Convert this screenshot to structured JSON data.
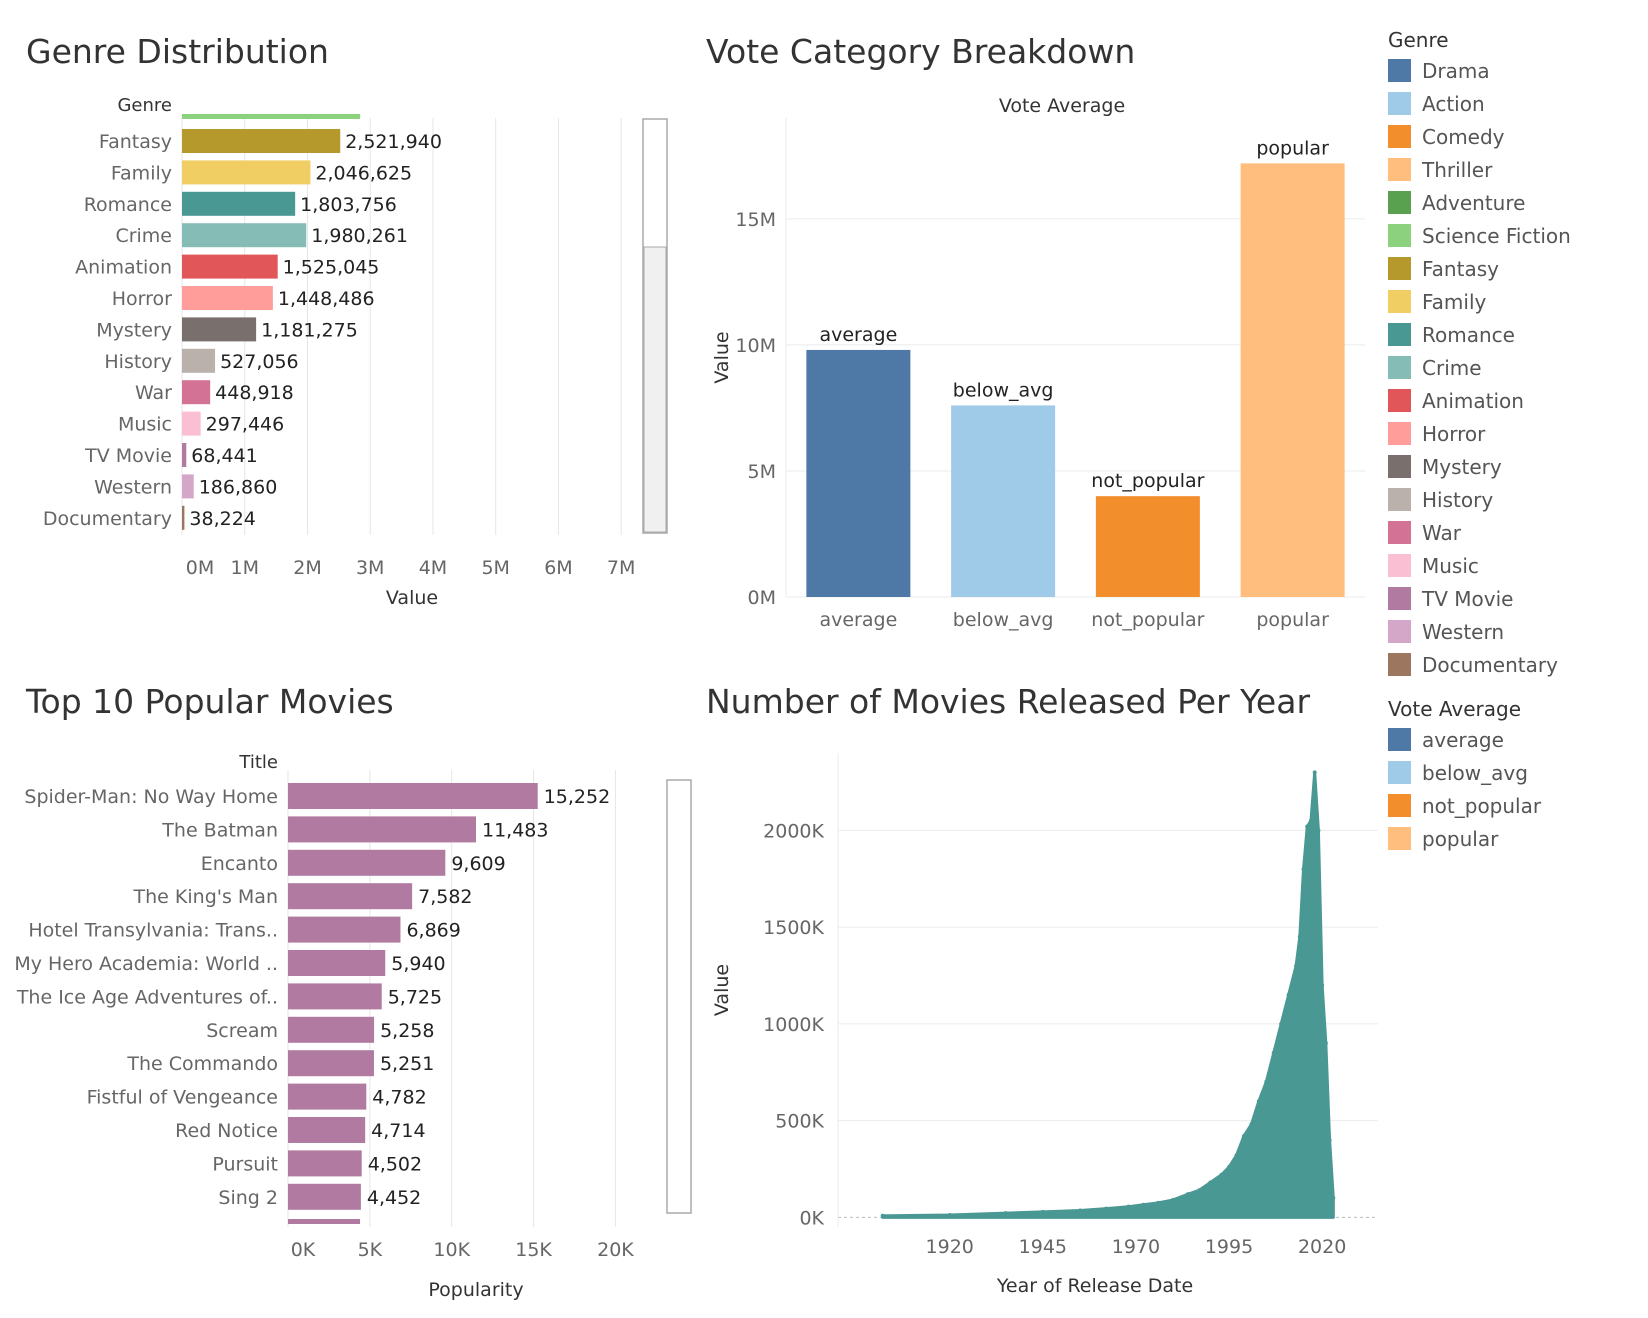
{
  "titles": {
    "genre": "Genre Distribution",
    "vote": "Vote Category Breakdown",
    "top10": "Top 10 Popular Movies",
    "release": "Number of Movies Released Per Year"
  },
  "colors": {
    "Drama": "#4e79a7",
    "Action": "#a0cbe8",
    "Comedy": "#f28e2b",
    "Thriller": "#ffbe7d",
    "Adventure": "#59a14f",
    "Science Fiction": "#8cd17d",
    "Fantasy": "#b6992d",
    "Family": "#f1ce63",
    "Romance": "#499894",
    "Crime": "#86bcb6",
    "Animation": "#e15759",
    "Horror": "#ff9d9a",
    "Mystery": "#79706e",
    "History": "#bab0ac",
    "War": "#d37295",
    "Music": "#fabfd2",
    "TV Movie": "#b07aa1",
    "Western": "#d4a6c8",
    "Documentary": "#9d7660",
    "average": "#4e79a7",
    "below_avg": "#a0cbe8",
    "not_popular": "#f28e2b",
    "popular": "#ffbe7d",
    "popularity_bar": "#b07aa1",
    "release_area": "#499894"
  },
  "legend": {
    "genre_title": "Genre",
    "genres": [
      "Drama",
      "Action",
      "Comedy",
      "Thriller",
      "Adventure",
      "Science Fiction",
      "Fantasy",
      "Family",
      "Romance",
      "Crime",
      "Animation",
      "Horror",
      "Mystery",
      "History",
      "War",
      "Music",
      "TV Movie",
      "Western",
      "Documentary"
    ],
    "vote_title": "Vote Average",
    "votes": [
      "average",
      "below_avg",
      "not_popular",
      "popular"
    ]
  },
  "chart_data": [
    {
      "id": "genre",
      "type": "bar",
      "orientation": "horizontal",
      "title": "Genre Distribution",
      "ylabel": "Genre",
      "xlabel": "Value",
      "xlim": [
        0,
        7300000
      ],
      "xticks": [
        0,
        1000000,
        2000000,
        3000000,
        4000000,
        5000000,
        6000000,
        7000000
      ],
      "xtick_labels": [
        "0M",
        "1M",
        "2M",
        "3M",
        "4M",
        "5M",
        "6M",
        "7M"
      ],
      "partial_category": {
        "label": "Science Fiction",
        "value": 2840000
      },
      "categories": [
        "Fantasy",
        "Family",
        "Romance",
        "Crime",
        "Animation",
        "Horror",
        "Mystery",
        "History",
        "War",
        "Music",
        "TV Movie",
        "Western",
        "Documentary"
      ],
      "values": [
        2521940,
        2046625,
        1803756,
        1980261,
        1525045,
        1448486,
        1181275,
        527056,
        448918,
        297446,
        68441,
        186860,
        38224
      ],
      "value_labels": [
        "2,521,940",
        "2,046,625",
        "1,803,756",
        "1,980,261",
        "1,525,045",
        "1,448,486",
        "1,181,275",
        "527,056",
        "448,918",
        "297,446",
        "68,441",
        "186,860",
        "38,224"
      ],
      "grid": true,
      "scrollbar": true
    },
    {
      "id": "vote",
      "type": "bar",
      "title": "Vote Category Breakdown",
      "header": "Vote Average",
      "ylabel": "Value",
      "xlabel": "",
      "categories": [
        "average",
        "below_avg",
        "not_popular",
        "popular"
      ],
      "values": [
        9800000,
        7600000,
        4000000,
        17200000
      ],
      "ylim": [
        0,
        19000000
      ],
      "yticks": [
        0,
        5000000,
        10000000,
        15000000
      ],
      "ytick_labels": [
        "0M",
        "5M",
        "10M",
        "15M"
      ],
      "grid": true
    },
    {
      "id": "top10",
      "type": "bar",
      "orientation": "horizontal",
      "title": "Top 10 Popular Movies",
      "ylabel": "Title",
      "xlabel": "Popularity",
      "xlim": [
        0,
        21500
      ],
      "xticks": [
        0,
        5000,
        10000,
        15000,
        20000
      ],
      "xtick_labels": [
        "0K",
        "5K",
        "10K",
        "15K",
        "20K"
      ],
      "categories": [
        "Spider-Man: No Way Home",
        "The Batman",
        "Encanto",
        "The King's Man",
        "Hotel Transylvania: Trans..",
        "My Hero Academia: World ..",
        "The Ice Age Adventures of..",
        "Scream",
        "The Commando",
        "Fistful of Vengeance",
        "Red Notice",
        "Pursuit",
        "Sing 2"
      ],
      "values": [
        15252,
        11483,
        9609,
        7582,
        6869,
        5940,
        5725,
        5258,
        5251,
        4782,
        4714,
        4502,
        4452
      ],
      "value_labels": [
        "15,252",
        "11,483",
        "9,609",
        "7,582",
        "6,869",
        "5,940",
        "5,725",
        "5,258",
        "5,251",
        "4,782",
        "4,714",
        "4,502",
        "4,452"
      ],
      "grid": true,
      "scrollbar": true
    },
    {
      "id": "release",
      "type": "area",
      "title": "Number of Movies Released Per Year",
      "xlabel": "Year of Release Date",
      "ylabel": "Value",
      "xlim": [
        1890,
        2035
      ],
      "ylim": [
        -50000,
        2400000
      ],
      "xticks": [
        1920,
        1945,
        1970,
        1995,
        2020
      ],
      "yticks": [
        0,
        500000,
        1000000,
        1500000,
        2000000
      ],
      "ytick_labels": [
        "0K",
        "500K",
        "1000K",
        "1500K",
        "2000K"
      ],
      "x": [
        1902,
        1920,
        1935,
        1945,
        1955,
        1962,
        1968,
        1972,
        1976,
        1980,
        1984,
        1987,
        1990,
        1993,
        1995,
        1997,
        1999,
        2001,
        2003,
        2005,
        2007,
        2009,
        2011,
        2013,
        2014,
        2015,
        2016,
        2017,
        2018,
        2019,
        2020,
        2021,
        2022,
        2023
      ],
      "values": [
        8000,
        12000,
        22000,
        28000,
        35000,
        45000,
        55000,
        65000,
        75000,
        90000,
        120000,
        140000,
        180000,
        220000,
        260000,
        320000,
        420000,
        480000,
        600000,
        700000,
        850000,
        1000000,
        1150000,
        1300000,
        1450000,
        1800000,
        2020000,
        2050000,
        2300000,
        2000000,
        1200000,
        900000,
        400000,
        100000
      ],
      "grid": true
    }
  ]
}
